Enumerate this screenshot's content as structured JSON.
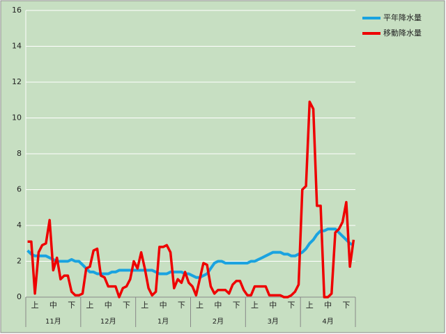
{
  "chart_data": {
    "type": "line",
    "categories": [
      null,
      null,
      "上",
      null,
      null,
      null,
      null,
      "中",
      null,
      null,
      null,
      null,
      "下",
      null,
      null,
      null,
      null,
      "上",
      null,
      null,
      null,
      null,
      "中",
      null,
      null,
      null,
      null,
      "下",
      null,
      null,
      null,
      null,
      "上",
      null,
      null,
      null,
      null,
      "中",
      null,
      null,
      null,
      null,
      "下",
      null,
      null,
      null,
      null,
      "上",
      null,
      null,
      null,
      null,
      "中",
      null,
      null,
      null,
      null,
      "下",
      null,
      null,
      null,
      null,
      "上",
      null,
      null,
      null,
      null,
      "中",
      null,
      null,
      null,
      null,
      "下",
      null,
      null,
      null,
      null,
      "上",
      null,
      null,
      null,
      null,
      "中",
      null,
      null,
      null,
      null,
      "下",
      null,
      null
    ],
    "groups": [
      "11月",
      "12月",
      "1月",
      "2月",
      "3月",
      "4月"
    ],
    "series": [
      {
        "name": "平年降水量",
        "color": "#1aa3e0",
        "values": [
          2.6,
          2.4,
          2.3,
          2.3,
          2.3,
          2.3,
          2.2,
          2.1,
          2.0,
          2.0,
          2.0,
          2.0,
          2.1,
          2.0,
          2.0,
          1.8,
          1.6,
          1.4,
          1.4,
          1.3,
          1.3,
          1.3,
          1.3,
          1.4,
          1.4,
          1.5,
          1.5,
          1.5,
          1.5,
          1.5,
          1.5,
          1.5,
          1.5,
          1.5,
          1.5,
          1.4,
          1.3,
          1.3,
          1.3,
          1.4,
          1.4,
          1.4,
          1.4,
          1.3,
          1.3,
          1.2,
          1.1,
          1.1,
          1.2,
          1.3,
          1.6,
          1.9,
          2.0,
          2.0,
          1.9,
          1.9,
          1.9,
          1.9,
          1.9,
          1.9,
          1.9,
          2.0,
          2.0,
          2.1,
          2.2,
          2.3,
          2.4,
          2.5,
          2.5,
          2.5,
          2.4,
          2.4,
          2.3,
          2.3,
          2.4,
          2.5,
          2.7,
          3.0,
          3.2,
          3.5,
          3.7,
          3.7,
          3.8,
          3.8,
          3.8,
          3.6,
          3.4,
          3.2,
          3.0,
          2.9
        ]
      },
      {
        "name": "移動降水量",
        "color": "#ee0000",
        "values": [
          3.1,
          3.1,
          0.2,
          2.5,
          2.9,
          3.0,
          4.3,
          1.5,
          2.2,
          1.0,
          1.2,
          1.2,
          0.3,
          0.1,
          0.1,
          0.2,
          1.6,
          1.7,
          2.6,
          2.7,
          1.2,
          1.1,
          0.6,
          0.6,
          0.6,
          0.0,
          0.5,
          0.6,
          1.0,
          2.0,
          1.6,
          2.5,
          1.6,
          0.5,
          0.1,
          0.3,
          2.8,
          2.8,
          2.9,
          2.5,
          0.5,
          1.0,
          0.8,
          1.4,
          0.8,
          0.6,
          0.1,
          1.0,
          1.9,
          1.8,
          0.6,
          0.2,
          0.4,
          0.4,
          0.4,
          0.2,
          0.7,
          0.9,
          0.9,
          0.4,
          0.1,
          0.1,
          0.6,
          0.6,
          0.6,
          0.6,
          0.1,
          0.1,
          0.1,
          0.1,
          0.0,
          0.0,
          0.1,
          0.3,
          0.7,
          6.0,
          6.2,
          10.9,
          10.5,
          5.1,
          5.1,
          0.0,
          0.0,
          0.2,
          3.6,
          3.8,
          4.2,
          5.3,
          1.7,
          3.2
        ]
      }
    ],
    "ylim": [
      0,
      16
    ],
    "yticks": [
      0,
      2,
      4,
      6,
      8,
      10,
      12,
      14,
      16
    ],
    "grid": true,
    "legend": "right"
  }
}
